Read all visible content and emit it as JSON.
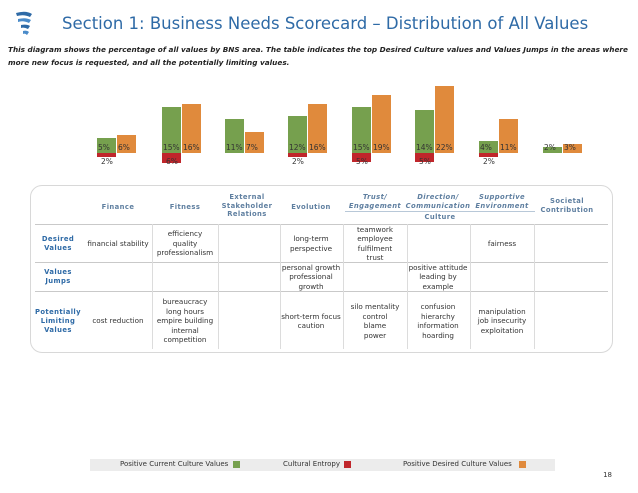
{
  "header": {
    "title": "Section 1: Business Needs Scorecard – Distribution of All Values",
    "intro": "This diagram shows the percentage of all values by BNS area. The table indicates the top Desired Culture values and Values Jumps in the areas where more new focus is requested, and all the potentially limiting values."
  },
  "colors": {
    "current": "#76a04e",
    "entropy": "#c0262b",
    "desired": "#e08a3c",
    "title": "#2e6aa6"
  },
  "chart_data": {
    "type": "bar",
    "categories": [
      "Finance",
      "Fitness",
      "External Stakeholder Relations",
      "Evolution",
      "Trust/ Engagement",
      "Direction/ Communication",
      "Supportive Environment",
      "Societal Contribution"
    ],
    "series": [
      {
        "name": "Positive Current Culture Values",
        "values": [
          5,
          15,
          11,
          12,
          15,
          14,
          4,
          2
        ]
      },
      {
        "name": "Positive Desired Culture Values",
        "values": [
          6,
          16,
          7,
          16,
          19,
          22,
          11,
          3
        ]
      },
      {
        "name": "Cultural Entropy",
        "values": [
          2,
          6,
          0,
          2,
          5,
          5,
          2,
          0
        ]
      }
    ],
    "value_labels": [
      {
        "current": "5%",
        "desired": "6%",
        "entropy": "2%"
      },
      {
        "current": "15%",
        "desired": "16%",
        "entropy": "6%"
      },
      {
        "current": "11%",
        "desired": "7%",
        "entropy": ""
      },
      {
        "current": "12%",
        "desired": "16%",
        "entropy": "2%"
      },
      {
        "current": "15%",
        "desired": "19%",
        "entropy": "5%"
      },
      {
        "current": "14%",
        "desired": "22%",
        "entropy": "5%"
      },
      {
        "current": "4%",
        "desired": "11%",
        "entropy": "2%"
      },
      {
        "current": "2%",
        "desired": "3%",
        "entropy": ""
      }
    ]
  },
  "table": {
    "columns": [
      "Finance",
      "Fitness",
      "External Stakeholder Relations",
      "Evolution",
      "Trust/ Engagement",
      "Direction/ Communication",
      "Supportive Environment",
      "Societal Contribution"
    ],
    "culture_group_label": "Culture",
    "rows": [
      {
        "label": "Desired Values",
        "cells": [
          "financial stability",
          "efficiency\nquality\nprofessionalism",
          "",
          "long-term\nperspective",
          "teamwork\nemployee\nfulfilment\ntrust",
          "",
          "fairness",
          ""
        ]
      },
      {
        "label": "Values Jumps",
        "cells": [
          "",
          "",
          "",
          "personal growth\nprofessional\ngrowth",
          "",
          "positive attitude\nleading by\nexample",
          "",
          ""
        ]
      },
      {
        "label": "Potentially Limiting Values",
        "cells": [
          "cost reduction",
          "bureaucracy\nlong hours\nempire building\ninternal\ncompetition",
          "",
          "short-term focus\ncaution",
          "silo mentality\ncontrol\nblame\npower",
          "confusion\nhierarchy\ninformation\nhoarding",
          "manipulation\njob insecurity\nexploitation",
          ""
        ]
      }
    ]
  },
  "legend": {
    "current": "Positive Current Culture Values",
    "entropy": "Cultural Entropy",
    "desired": "Positive Desired Culture Values"
  },
  "page_number": "18"
}
